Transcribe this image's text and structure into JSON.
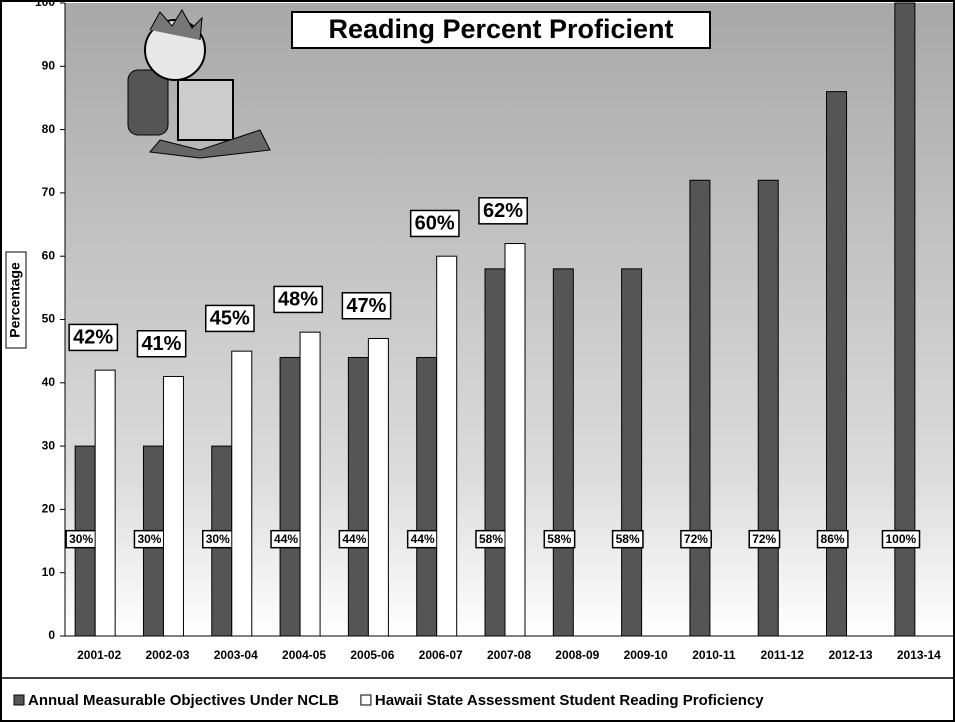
{
  "chart_data": {
    "type": "bar",
    "title": "Reading Percent Proficient",
    "y_label": "Percentage",
    "categories": [
      "2001-02",
      "2002-03",
      "2003-04",
      "2004-05",
      "2005-06",
      "2006-07",
      "2007-08",
      "2008-09",
      "2009-10",
      "2010-11",
      "2011-12",
      "2012-13",
      "2013-14"
    ],
    "series": [
      {
        "name": "Annual Measurable Objectives Under NCLB",
        "color": "#555555",
        "values": [
          30,
          30,
          30,
          44,
          44,
          44,
          58,
          58,
          58,
          72,
          72,
          86,
          100
        ],
        "value_labels": [
          "30%",
          "30%",
          "30%",
          "44%",
          "44%",
          "44%",
          "58%",
          "58%",
          "58%",
          "72%",
          "72%",
          "86%",
          "100%"
        ]
      },
      {
        "name": "Hawaii State Assessment Student Reading Proficiency",
        "color": "#ffffff",
        "values": [
          42,
          41,
          45,
          48,
          47,
          60,
          62,
          null,
          null,
          null,
          null,
          null,
          null
        ],
        "value_labels": [
          "42%",
          "41%",
          "45%",
          "48%",
          "47%",
          "60%",
          "62%",
          null,
          null,
          null,
          null,
          null,
          null
        ]
      }
    ],
    "ylim": [
      0,
      100
    ],
    "yticks": [
      0,
      10,
      20,
      30,
      40,
      50,
      60,
      70,
      80,
      90,
      100
    ],
    "legend": "bottom"
  }
}
